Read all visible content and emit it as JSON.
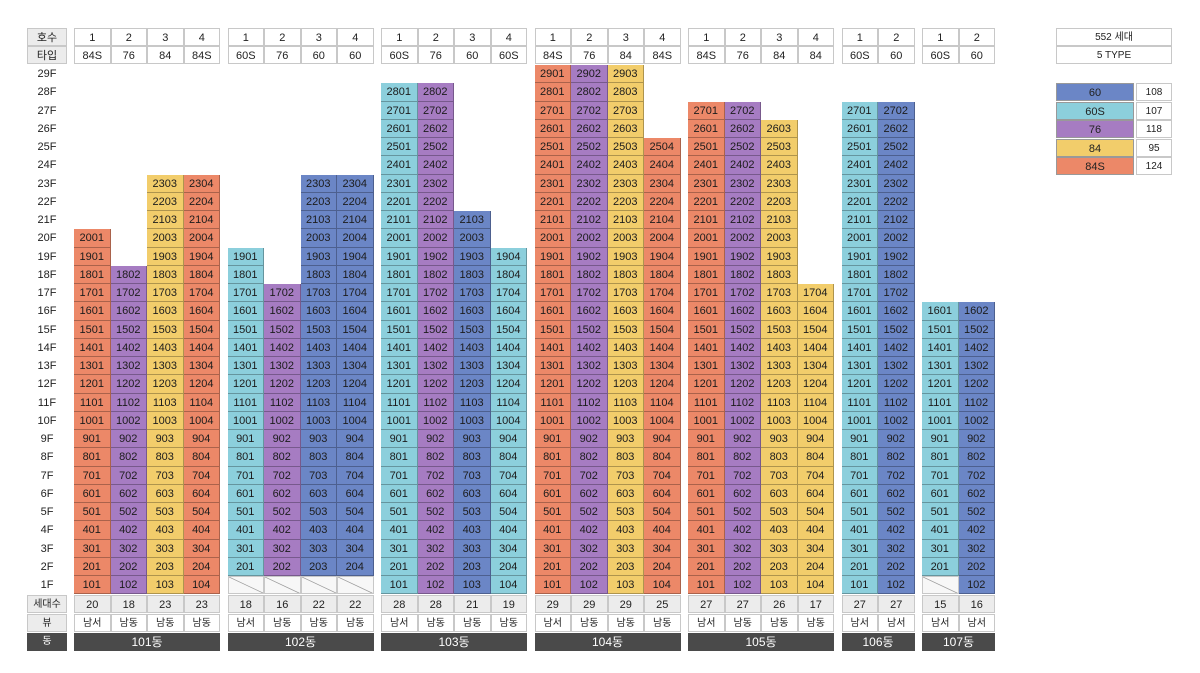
{
  "labels": {
    "hosu": "호수",
    "type": "타입",
    "units": "세대수",
    "view": "뷰",
    "dong": "동"
  },
  "floors": [
    "29F",
    "28F",
    "27F",
    "26F",
    "25F",
    "24F",
    "23F",
    "22F",
    "21F",
    "20F",
    "19F",
    "18F",
    "17F",
    "16F",
    "15F",
    "14F",
    "13F",
    "12F",
    "11F",
    "10F",
    "9F",
    "8F",
    "7F",
    "6F",
    "5F",
    "4F",
    "3F",
    "2F",
    "1F"
  ],
  "legend": {
    "total": "552 세대",
    "types_label": "5 TYPE",
    "items": [
      {
        "type": "60",
        "count": "108",
        "color": "#6b86c6"
      },
      {
        "type": "60S",
        "count": "107",
        "color": "#8ccfdc"
      },
      {
        "type": "76",
        "count": "118",
        "color": "#a67cc2"
      },
      {
        "type": "84",
        "count": "95",
        "color": "#f2cd6b"
      },
      {
        "type": "84S",
        "count": "124",
        "color": "#ec8868"
      }
    ]
  },
  "colors": {
    "60": "#6b86c6",
    "60S": "#8ccfdc",
    "76": "#a67cc2",
    "84": "#f2cd6b",
    "84S": "#ec8868"
  },
  "buildings": [
    {
      "name": "101동",
      "lines": [
        {
          "no": "1",
          "type": "84S",
          "top": 20,
          "pilotis": false,
          "units": "20",
          "view": "남서"
        },
        {
          "no": "2",
          "type": "76",
          "top": 18,
          "pilotis": false,
          "units": "18",
          "view": "남동"
        },
        {
          "no": "3",
          "type": "84",
          "top": 23,
          "pilotis": false,
          "units": "23",
          "view": "남동"
        },
        {
          "no": "4",
          "type": "84S",
          "top": 23,
          "pilotis": false,
          "units": "23",
          "view": "남동"
        }
      ]
    },
    {
      "name": "102동",
      "lines": [
        {
          "no": "1",
          "type": "60S",
          "top": 19,
          "pilotis": true,
          "units": "18",
          "view": "남서"
        },
        {
          "no": "2",
          "type": "76",
          "top": 17,
          "pilotis": true,
          "units": "16",
          "view": "남동"
        },
        {
          "no": "3",
          "type": "60",
          "top": 23,
          "pilotis": true,
          "units": "22",
          "view": "남동"
        },
        {
          "no": "4",
          "type": "60",
          "top": 23,
          "pilotis": true,
          "units": "22",
          "view": "남동"
        }
      ]
    },
    {
      "name": "103동",
      "lines": [
        {
          "no": "1",
          "type": "60S",
          "top": 28,
          "pilotis": false,
          "units": "28",
          "view": "남서"
        },
        {
          "no": "2",
          "type": "76",
          "top": 28,
          "pilotis": false,
          "units": "28",
          "view": "남동"
        },
        {
          "no": "3",
          "type": "60",
          "top": 21,
          "pilotis": false,
          "units": "21",
          "view": "남동"
        },
        {
          "no": "4",
          "type": "60S",
          "top": 19,
          "pilotis": false,
          "units": "19",
          "view": "남동"
        }
      ]
    },
    {
      "name": "104동",
      "lines": [
        {
          "no": "1",
          "type": "84S",
          "top": 29,
          "pilotis": false,
          "units": "29",
          "view": "남서"
        },
        {
          "no": "2",
          "type": "76",
          "top": 29,
          "pilotis": false,
          "units": "29",
          "view": "남동"
        },
        {
          "no": "3",
          "type": "84",
          "top": 29,
          "pilotis": false,
          "units": "29",
          "view": "남동"
        },
        {
          "no": "4",
          "type": "84S",
          "top": 25,
          "pilotis": false,
          "units": "25",
          "view": "남동"
        }
      ]
    },
    {
      "name": "105동",
      "lines": [
        {
          "no": "1",
          "type": "84S",
          "top": 27,
          "pilotis": false,
          "units": "27",
          "view": "남서"
        },
        {
          "no": "2",
          "type": "76",
          "top": 27,
          "pilotis": false,
          "units": "27",
          "view": "남동"
        },
        {
          "no": "3",
          "type": "84",
          "top": 26,
          "pilotis": false,
          "units": "26",
          "view": "남동"
        },
        {
          "no": "4",
          "type": "84",
          "top": 17,
          "pilotis": false,
          "units": "17",
          "view": "남동"
        }
      ]
    },
    {
      "name": "106동",
      "lines": [
        {
          "no": "1",
          "type": "60S",
          "top": 27,
          "pilotis": false,
          "units": "27",
          "view": "남서"
        },
        {
          "no": "2",
          "type": "60",
          "top": 27,
          "pilotis": false,
          "units": "27",
          "view": "남서"
        }
      ]
    },
    {
      "name": "107동",
      "lines": [
        {
          "no": "1",
          "type": "60S",
          "top": 16,
          "pilotis": true,
          "units": "15",
          "view": "남서"
        },
        {
          "no": "2",
          "type": "60",
          "top": 16,
          "pilotis": false,
          "units": "16",
          "view": "남서"
        }
      ]
    }
  ]
}
